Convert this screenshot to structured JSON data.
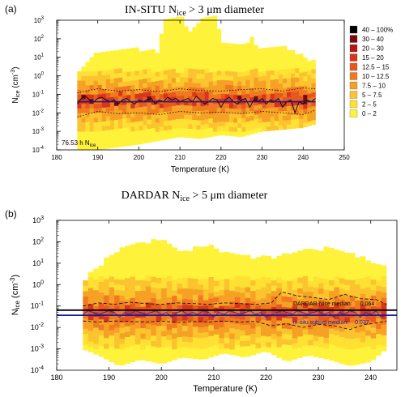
{
  "chart_data": [
    {
      "type": "heatmap",
      "panel_label": "(a)",
      "title_prefix": "IN-SITU N",
      "title_sub": "ice",
      "title_suffix": " > 3 μm diameter",
      "xlabel": "Temperature (K)",
      "ylabel_main": "N",
      "ylabel_sub": "ice",
      "ylabel_unit": " (cm",
      "ylabel_exp": "-3",
      "ylabel_close": ")",
      "xlim": [
        180,
        250
      ],
      "xticks": [
        "180",
        "190",
        "200",
        "210",
        "220",
        "230",
        "240",
        "250"
      ],
      "ylim_log10": [
        -4,
        3
      ],
      "y_scale": "log",
      "yticks": [
        {
          "exp": -4,
          "base": "10",
          "sup": "-4"
        },
        {
          "exp": -3,
          "base": "10",
          "sup": "-3"
        },
        {
          "exp": -2,
          "base": "10",
          "sup": "-2"
        },
        {
          "exp": -1,
          "base": "10",
          "sup": "-1"
        },
        {
          "exp": 0,
          "base": "10",
          "sup": "0"
        },
        {
          "exp": 1,
          "base": "10",
          "sup": "1"
        },
        {
          "exp": 2,
          "base": "10",
          "sup": "2"
        },
        {
          "exp": 3,
          "base": "10",
          "sup": "3"
        }
      ],
      "annotation_main": "76.53 h N",
      "annotation_sub": "ice",
      "legend_placement": "right",
      "legend": [
        {
          "label": "40 – 100%",
          "color": "#000000"
        },
        {
          "label": "30 – 40",
          "color": "#7a0a0a"
        },
        {
          "label": "20 – 30",
          "color": "#b01a12"
        },
        {
          "label": "15 – 20",
          "color": "#d8361a"
        },
        {
          "label": "12.5 – 15",
          "color": "#e8571e"
        },
        {
          "label": "10 – 12.5",
          "color": "#f07a20"
        },
        {
          "label": "7.5 – 10",
          "color": "#f6a026"
        },
        {
          "label": "5 – 7.5",
          "color": "#fbc42e"
        },
        {
          "label": "2 – 5",
          "color": "#ffe033"
        },
        {
          "label": "0 – 2",
          "color": "#fff23a"
        }
      ],
      "x_range_data": [
        185,
        243
      ],
      "extent_upper_log10": [
        [
          185,
          0
        ],
        [
          187,
          0.5
        ],
        [
          190,
          1.2
        ],
        [
          195,
          1.4
        ],
        [
          200,
          1.3
        ],
        [
          205,
          1.2
        ],
        [
          206,
          3
        ],
        [
          211,
          3
        ],
        [
          212,
          2
        ],
        [
          215,
          3
        ],
        [
          219,
          3
        ],
        [
          220,
          1.6
        ],
        [
          225,
          1.5
        ],
        [
          228,
          2
        ],
        [
          229,
          1.3
        ],
        [
          235,
          1.5
        ],
        [
          238,
          1.2
        ],
        [
          241,
          0.8
        ],
        [
          243,
          0.6
        ]
      ],
      "extent_lower_log10": [
        [
          185,
          -4
        ],
        [
          190,
          -4
        ],
        [
          200,
          -3.7
        ],
        [
          205,
          -3.5
        ],
        [
          210,
          -3.3
        ],
        [
          215,
          -3.4
        ],
        [
          220,
          -3.2
        ],
        [
          225,
          -3.3
        ],
        [
          230,
          -3
        ],
        [
          235,
          -2.9
        ],
        [
          240,
          -2.8
        ],
        [
          243,
          -2.6
        ]
      ],
      "median_line": {
        "x": [
          185,
          243
        ],
        "y": [
          0.04,
          0.04
        ]
      },
      "median_series": {
        "x": [
          185,
          186,
          187,
          188,
          189,
          190,
          191,
          192,
          193,
          194,
          195,
          196,
          197,
          198,
          199,
          200,
          201,
          202,
          203,
          204,
          205,
          206,
          207,
          208,
          209,
          210,
          211,
          212,
          213,
          214,
          215,
          216,
          217,
          218,
          219,
          220,
          221,
          222,
          223,
          224,
          225,
          226,
          227,
          228,
          229,
          230,
          231,
          232,
          233,
          234,
          235,
          236,
          237,
          238,
          239,
          240,
          241,
          242,
          243
        ],
        "y": [
          0.03,
          0.06,
          0.08,
          0.05,
          0.04,
          0.06,
          0.07,
          0.05,
          0.04,
          0.05,
          0.03,
          0.05,
          0.06,
          0.04,
          0.03,
          0.05,
          0.04,
          0.05,
          0.06,
          0.03,
          0.05,
          0.04,
          0.07,
          0.05,
          0.06,
          0.04,
          0.05,
          0.06,
          0.04,
          0.08,
          0.05,
          0.03,
          0.04,
          0.06,
          0.05,
          0.02,
          0.05,
          0.07,
          0.04,
          0.03,
          0.05,
          0.06,
          0.02,
          0.05,
          0.04,
          0.06,
          0.03,
          0.05,
          0.04,
          0.06,
          0.02,
          0.04,
          0.05,
          0.01,
          0.04,
          0.03,
          0.05,
          0.04,
          0.06
        ]
      },
      "upper_quartile": {
        "x": [
          185,
          190,
          195,
          200,
          205,
          210,
          215,
          220,
          225,
          230,
          235,
          240,
          243
        ],
        "y": [
          0.12,
          0.2,
          0.15,
          0.18,
          0.14,
          0.2,
          0.16,
          0.15,
          0.18,
          0.2,
          0.15,
          0.22,
          0.2
        ]
      },
      "lower_quartile": {
        "x": [
          185,
          190,
          195,
          200,
          205,
          210,
          215,
          220,
          225,
          230,
          235,
          240,
          243
        ],
        "y": [
          0.006,
          0.012,
          0.009,
          0.01,
          0.008,
          0.012,
          0.01,
          0.011,
          0.009,
          0.012,
          0.01,
          0.008,
          0.014
        ]
      }
    },
    {
      "type": "heatmap",
      "panel_label": "(b)",
      "title_prefix": "DARDAR N",
      "title_sub": "ice",
      "title_suffix": " > 5 μm diameter",
      "xlabel": "Temperature (K)",
      "ylabel_main": "N",
      "ylabel_sub": "ice",
      "ylabel_unit": " (cm",
      "ylabel_exp": "-3",
      "ylabel_close": ")",
      "xlim": [
        180,
        245
      ],
      "xticks": [
        "180",
        "190",
        "200",
        "210",
        "220",
        "230",
        "240"
      ],
      "ylim_log10": [
        -4,
        3
      ],
      "y_scale": "log",
      "yticks": [
        {
          "exp": -4,
          "base": "10",
          "sup": "-4"
        },
        {
          "exp": -3,
          "base": "10",
          "sup": "-3"
        },
        {
          "exp": -2,
          "base": "10",
          "sup": "-2"
        },
        {
          "exp": -1,
          "base": "10",
          "sup": "-1"
        },
        {
          "exp": 0,
          "base": "10",
          "sup": "0"
        },
        {
          "exp": 1,
          "base": "10",
          "sup": "1"
        },
        {
          "exp": 2,
          "base": "10",
          "sup": "2"
        },
        {
          "exp": 3,
          "base": "10",
          "sup": "3"
        }
      ],
      "x_range_data": [
        185,
        243
      ],
      "extent_upper_log10": [
        [
          185,
          0
        ],
        [
          188,
          0.8
        ],
        [
          192,
          1.5
        ],
        [
          196,
          1.8
        ],
        [
          200,
          2
        ],
        [
          204,
          1.3
        ],
        [
          208,
          1.8
        ],
        [
          212,
          1.4
        ],
        [
          216,
          1.2
        ],
        [
          220,
          1.1
        ],
        [
          224,
          1.3
        ],
        [
          228,
          1.5
        ],
        [
          232,
          1.6
        ],
        [
          236,
          1.3
        ],
        [
          240,
          1
        ],
        [
          243,
          0.6
        ]
      ],
      "extent_lower_log10": [
        [
          185,
          -3
        ],
        [
          188,
          -3.3
        ],
        [
          192,
          -3.8
        ],
        [
          196,
          -3.5
        ],
        [
          200,
          -3.7
        ],
        [
          204,
          -3.4
        ],
        [
          208,
          -3.5
        ],
        [
          212,
          -3.2
        ],
        [
          216,
          -3.4
        ],
        [
          220,
          -3.1
        ],
        [
          224,
          -3.6
        ],
        [
          228,
          -3.3
        ],
        [
          232,
          -3.5
        ],
        [
          236,
          -3.8
        ],
        [
          240,
          -3.6
        ],
        [
          243,
          -3
        ]
      ],
      "dardar_median": {
        "label_prefix": "DARDAR-Nice median:",
        "value": "0.064",
        "y": 0.064
      },
      "insitu_median": {
        "label_prefix": "in-situ subset median:",
        "value": "0.037",
        "y": 0.037
      },
      "median_series": {
        "x": [
          185,
          186,
          187,
          188,
          189,
          190,
          191,
          192,
          193,
          194,
          195,
          196,
          197,
          198,
          199,
          200,
          201,
          202,
          203,
          204,
          205,
          206,
          207,
          208,
          209,
          210,
          211,
          212,
          213,
          214,
          215,
          216,
          217,
          218,
          219,
          220,
          221,
          222,
          223,
          224,
          225,
          226,
          227,
          228,
          229,
          230,
          231,
          232,
          233,
          234,
          235,
          236,
          237,
          238,
          239,
          240,
          241,
          242,
          243
        ],
        "y": [
          0.04,
          0.06,
          0.05,
          0.04,
          0.05,
          0.06,
          0.05,
          0.03,
          0.05,
          0.04,
          0.06,
          0.05,
          0.04,
          0.05,
          0.06,
          0.04,
          0.05,
          0.03,
          0.05,
          0.06,
          0.04,
          0.05,
          0.04,
          0.06,
          0.05,
          0.03,
          0.05,
          0.04,
          0.06,
          0.05,
          0.04,
          0.05,
          0.06,
          0.04,
          0.05,
          0.03,
          0.04,
          0.05,
          0.06,
          0.05,
          0.04,
          0.06,
          0.05,
          0.04,
          0.05,
          0.06,
          0.04,
          0.05,
          0.03,
          0.05,
          0.04,
          0.06,
          0.05,
          0.03,
          0.05,
          0.04,
          0.06,
          0.03,
          0.04
        ]
      },
      "upper_quartile": {
        "x": [
          185,
          188,
          191,
          194,
          197,
          200,
          203,
          206,
          209,
          212,
          215,
          218,
          221,
          223,
          226,
          229,
          232,
          235,
          238,
          241,
          243
        ],
        "y": [
          0.1,
          0.14,
          0.12,
          0.15,
          0.13,
          0.12,
          0.14,
          0.13,
          0.12,
          0.14,
          0.13,
          0.12,
          0.14,
          0.45,
          0.3,
          0.25,
          0.2,
          0.35,
          0.22,
          0.2,
          0.12
        ]
      },
      "lower_quartile": {
        "x": [
          185,
          188,
          191,
          194,
          197,
          200,
          203,
          206,
          209,
          212,
          215,
          218,
          221,
          224,
          227,
          230,
          233,
          236,
          239,
          241,
          243
        ],
        "y": [
          0.02,
          0.018,
          0.02,
          0.019,
          0.018,
          0.02,
          0.017,
          0.019,
          0.018,
          0.02,
          0.018,
          0.019,
          0.012,
          0.015,
          0.01,
          0.014,
          0.012,
          0.008,
          0.014,
          0.016,
          0.02
        ]
      }
    }
  ]
}
